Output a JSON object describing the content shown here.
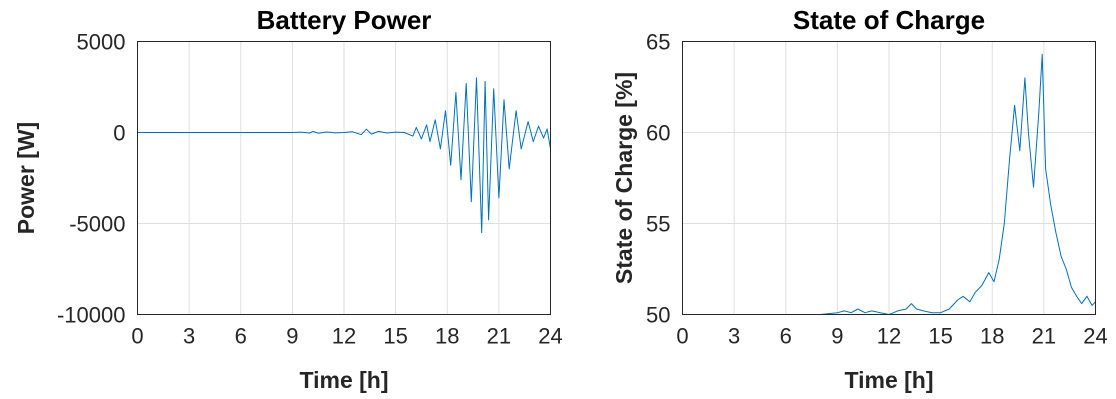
{
  "chart_data": [
    {
      "type": "line",
      "title": "Battery Power",
      "xlabel": "Time [h]",
      "ylabel": "Power [W]",
      "xlim": [
        0,
        24
      ],
      "ylim": [
        -10000,
        5000
      ],
      "xticks": [
        0,
        3,
        6,
        9,
        12,
        15,
        18,
        21,
        24
      ],
      "yticks": [
        -10000,
        -5000,
        0,
        5000
      ],
      "xtick_labels": [
        "0",
        "3",
        "6",
        "9",
        "12",
        "15",
        "18",
        "21",
        "24"
      ],
      "ytick_labels": [
        "-10000",
        "-5000",
        "0",
        "5000"
      ],
      "grid": true,
      "line_color": "#0072bd",
      "series": [
        {
          "x": [
            0,
            1,
            2,
            3,
            4,
            5,
            6,
            7,
            8,
            9,
            9.5,
            10,
            10.2,
            10.5,
            11,
            11.5,
            12,
            12.5,
            13,
            13.3,
            13.6,
            14,
            14.5,
            15,
            15.5,
            16,
            16.2,
            16.5,
            16.8,
            17,
            17.3,
            17.6,
            17.9,
            18.2,
            18.5,
            18.8,
            19.1,
            19.4,
            19.7,
            20,
            20.2,
            20.4,
            20.7,
            21,
            21.3,
            21.6,
            22,
            22.3,
            22.7,
            23,
            23.3,
            23.6,
            23.8,
            24
          ],
          "y": [
            0,
            0,
            0,
            0,
            0,
            0,
            0,
            0,
            0,
            0,
            20,
            -30,
            60,
            -40,
            30,
            -20,
            0,
            40,
            -120,
            180,
            -90,
            60,
            -30,
            20,
            0,
            -200,
            280,
            -350,
            420,
            -500,
            700,
            -900,
            1200,
            -1800,
            2200,
            -2600,
            2700,
            -3800,
            3000,
            -5500,
            2800,
            -4800,
            2400,
            -3600,
            1800,
            -2000,
            1200,
            -900,
            600,
            -500,
            350,
            -300,
            200,
            -900
          ]
        }
      ]
    },
    {
      "type": "line",
      "title": "State of Charge",
      "xlabel": "Time [h]",
      "ylabel": "State of Charge [%]",
      "xlim": [
        0,
        24
      ],
      "ylim": [
        50,
        65
      ],
      "xticks": [
        0,
        3,
        6,
        9,
        12,
        15,
        18,
        21,
        24
      ],
      "yticks": [
        50,
        55,
        60,
        65
      ],
      "xtick_labels": [
        "0",
        "3",
        "6",
        "9",
        "12",
        "15",
        "18",
        "21",
        "24"
      ],
      "ytick_labels": [
        "50",
        "55",
        "60",
        "65"
      ],
      "grid": true,
      "line_color": "#0072bd",
      "series": [
        {
          "x": [
            0,
            2,
            4,
            6,
            8,
            9,
            9.4,
            9.8,
            10.2,
            10.6,
            11,
            11.5,
            12,
            12.5,
            13,
            13.3,
            13.6,
            14,
            14.5,
            15,
            15.5,
            16,
            16.3,
            16.7,
            17,
            17.4,
            17.8,
            18.1,
            18.4,
            18.7,
            19,
            19.3,
            19.6,
            19.9,
            20.1,
            20.4,
            20.7,
            20.9,
            21.1,
            21.4,
            21.7,
            22,
            22.3,
            22.6,
            22.9,
            23.2,
            23.5,
            23.8,
            24
          ],
          "y": [
            50,
            50,
            50,
            50,
            50,
            50.1,
            50.2,
            50.1,
            50.3,
            50.1,
            50.2,
            50.1,
            50.0,
            50.2,
            50.3,
            50.6,
            50.3,
            50.2,
            50.1,
            50.1,
            50.3,
            50.8,
            51.0,
            50.7,
            51.2,
            51.6,
            52.3,
            51.8,
            53.0,
            55.0,
            58.5,
            61.5,
            59.0,
            63.0,
            60.0,
            57.0,
            61.0,
            64.3,
            58.0,
            56.0,
            54.5,
            53.2,
            52.5,
            51.5,
            51.0,
            50.6,
            51.0,
            50.5,
            50.7
          ]
        }
      ]
    }
  ]
}
